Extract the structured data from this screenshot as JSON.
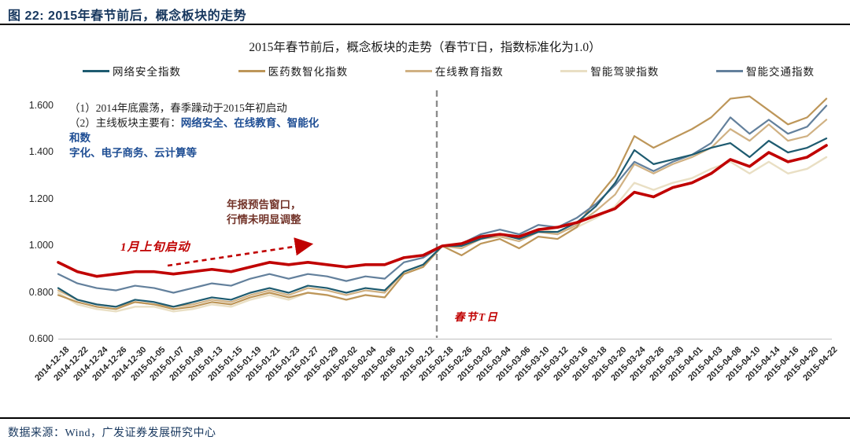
{
  "figure_header": {
    "title": "图 22: 2015年春节前后，概念板块的走势"
  },
  "footer": {
    "source": "数据来源：Wind，广发证券发展研究中心"
  },
  "annotations": {
    "note_line1": "（1）2014年底震荡，春季躁动于2015年初启动",
    "note_line2_prefix": "（2）主线板块主要有：",
    "note_line2_bold": "网络安全、在线教育、智能化和数",
    "note_line3_bold": "字化、电子商务、云计算等",
    "window_note_line1": "年报预告窗口，",
    "window_note_line2": "行情未明显调整",
    "launch_note": "1月上旬启动",
    "tday_label": "春节T日"
  },
  "chart_data": {
    "type": "line",
    "title": "2015年春节前后，概念板块的走势（春节T日，指数标准化为1.0）",
    "grid": false,
    "legend_position": "top",
    "ylim": [
      0.6,
      1.65
    ],
    "yticks": [
      0.6,
      0.8,
      1.0,
      1.2,
      1.4,
      1.6
    ],
    "ytick_labels": [
      "0.600",
      "0.800",
      "1.000",
      "1.200",
      "1.400",
      "1.600"
    ],
    "tday_index": 20,
    "x": [
      "2014-12-18",
      "2014-12-22",
      "2014-12-24",
      "2014-12-26",
      "2014-12-30",
      "2015-01-05",
      "2015-01-07",
      "2015-01-09",
      "2015-01-13",
      "2015-01-15",
      "2015-01-19",
      "2015-01-21",
      "2015-01-23",
      "2015-01-27",
      "2015-01-29",
      "2015-02-02",
      "2015-02-04",
      "2015-02-06",
      "2015-02-10",
      "2015-02-12",
      "2015-02-18",
      "2015-02-26",
      "2015-03-02",
      "2015-03-04",
      "2015-03-06",
      "2015-03-10",
      "2015-03-12",
      "2015-03-16",
      "2015-03-18",
      "2015-03-20",
      "2015-03-24",
      "2015-03-26",
      "2015-03-30",
      "2015-04-01",
      "2015-04-03",
      "2015-04-08",
      "2015-04-10",
      "2015-04-14",
      "2015-04-16",
      "2015-04-20",
      "2015-04-22"
    ],
    "series": [
      {
        "name": "网络安全指数",
        "color": "#1E5B70",
        "line_width": 2.2,
        "in_legend": true,
        "values": [
          0.82,
          0.77,
          0.75,
          0.74,
          0.77,
          0.76,
          0.74,
          0.76,
          0.78,
          0.77,
          0.8,
          0.82,
          0.8,
          0.83,
          0.82,
          0.8,
          0.82,
          0.81,
          0.89,
          0.92,
          1.0,
          1.0,
          1.03,
          1.05,
          1.03,
          1.06,
          1.06,
          1.1,
          1.17,
          1.27,
          1.41,
          1.35,
          1.37,
          1.39,
          1.42,
          1.44,
          1.38,
          1.45,
          1.4,
          1.42,
          1.46
        ]
      },
      {
        "name": "医药数智化指数",
        "color": "#BD9659",
        "line_width": 2.2,
        "in_legend": true,
        "values": [
          0.79,
          0.76,
          0.74,
          0.73,
          0.76,
          0.75,
          0.73,
          0.74,
          0.76,
          0.75,
          0.78,
          0.8,
          0.78,
          0.8,
          0.79,
          0.77,
          0.79,
          0.78,
          0.88,
          0.91,
          1.0,
          0.96,
          1.01,
          1.03,
          0.99,
          1.04,
          1.03,
          1.08,
          1.2,
          1.3,
          1.47,
          1.42,
          1.46,
          1.5,
          1.55,
          1.63,
          1.64,
          1.58,
          1.52,
          1.55,
          1.63
        ]
      },
      {
        "name": "在线教育指数",
        "color": "#D0B183",
        "line_width": 2.2,
        "in_legend": true,
        "values": [
          0.81,
          0.77,
          0.75,
          0.74,
          0.76,
          0.75,
          0.74,
          0.75,
          0.77,
          0.76,
          0.79,
          0.81,
          0.79,
          0.82,
          0.81,
          0.79,
          0.81,
          0.8,
          0.89,
          0.92,
          1.0,
          0.99,
          1.03,
          1.04,
          1.02,
          1.06,
          1.05,
          1.09,
          1.15,
          1.22,
          1.35,
          1.31,
          1.35,
          1.38,
          1.42,
          1.5,
          1.45,
          1.52,
          1.45,
          1.47,
          1.54
        ]
      },
      {
        "name": "智能驾驶指数",
        "color": "#E9DFC4",
        "line_width": 2.4,
        "in_legend": true,
        "values": [
          0.8,
          0.75,
          0.73,
          0.72,
          0.74,
          0.74,
          0.72,
          0.73,
          0.75,
          0.74,
          0.77,
          0.79,
          0.77,
          0.8,
          0.79,
          0.77,
          0.79,
          0.78,
          0.88,
          0.91,
          1.0,
          1.0,
          1.04,
          1.05,
          1.03,
          1.07,
          1.06,
          1.08,
          1.12,
          1.17,
          1.27,
          1.24,
          1.27,
          1.29,
          1.33,
          1.36,
          1.31,
          1.36,
          1.31,
          1.33,
          1.38
        ]
      },
      {
        "name": "智能交通指数",
        "color": "#63809C",
        "line_width": 2.2,
        "in_legend": true,
        "values": [
          0.88,
          0.84,
          0.82,
          0.81,
          0.83,
          0.82,
          0.8,
          0.82,
          0.84,
          0.83,
          0.86,
          0.88,
          0.86,
          0.88,
          0.87,
          0.85,
          0.87,
          0.86,
          0.93,
          0.95,
          1.0,
          1.01,
          1.05,
          1.07,
          1.05,
          1.09,
          1.08,
          1.12,
          1.18,
          1.26,
          1.36,
          1.32,
          1.36,
          1.39,
          1.44,
          1.55,
          1.48,
          1.54,
          1.48,
          1.51,
          1.6
        ]
      },
      {
        "name": "",
        "id": "red-bold-highlight-line",
        "color": "#C00000",
        "line_width": 3.6,
        "in_legend": false,
        "values": [
          0.93,
          0.89,
          0.87,
          0.88,
          0.89,
          0.89,
          0.88,
          0.89,
          0.9,
          0.89,
          0.91,
          0.93,
          0.92,
          0.93,
          0.92,
          0.91,
          0.92,
          0.92,
          0.95,
          0.96,
          1.0,
          1.01,
          1.04,
          1.05,
          1.04,
          1.07,
          1.08,
          1.1,
          1.13,
          1.16,
          1.23,
          1.21,
          1.25,
          1.27,
          1.31,
          1.37,
          1.34,
          1.4,
          1.36,
          1.38,
          1.43
        ]
      }
    ]
  }
}
